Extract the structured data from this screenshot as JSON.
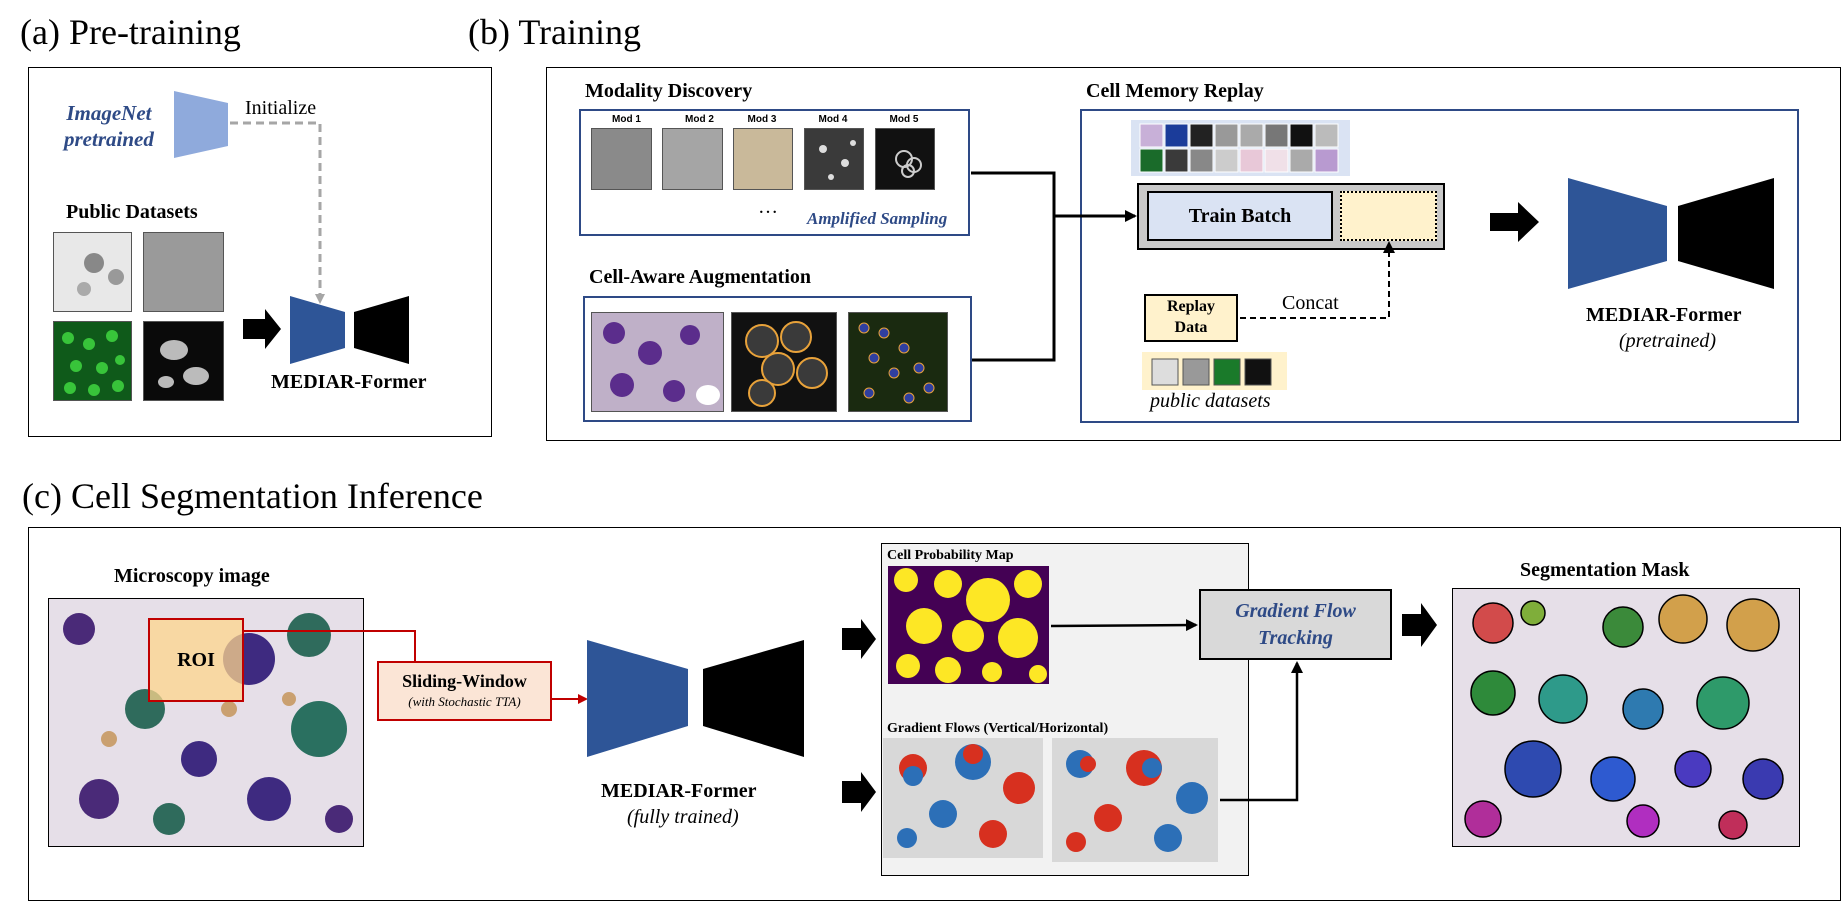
{
  "section_a": {
    "title": "(a) Pre-training",
    "imagenet_label_line1": "ImageNet",
    "imagenet_label_line2": "pretrained",
    "initialize_label": "Initialize",
    "public_datasets_label": "Public Datasets",
    "model_label": "MEDIAR-Former"
  },
  "section_b": {
    "title": "(b) Training",
    "modality_discovery": {
      "title": "Modality Discovery",
      "mods": [
        "Mod 1",
        "Mod 2",
        "Mod 3",
        "Mod 4",
        "Mod 5"
      ],
      "ellipsis": "…",
      "sampling_label": "Amplified Sampling"
    },
    "augmentation_title": "Cell-Aware Augmentation",
    "memory_replay": {
      "title": "Cell Memory Replay",
      "train_batch_label": "Train Batch",
      "replay_line1": "Replay",
      "replay_line2": "Data",
      "concat_label": "Concat",
      "public_datasets_label": "public datasets"
    },
    "model_label": "MEDIAR-Former",
    "model_sublabel": "(pretrained)"
  },
  "section_c": {
    "title": "(c) Cell Segmentation Inference",
    "microscopy_label": "Microscopy image",
    "roi_label": "ROI",
    "sliding_window_label": "Sliding-Window",
    "sliding_window_sublabel": "(with Stochastic TTA)",
    "model_label": "MEDIAR-Former",
    "model_sublabel": "(fully trained)",
    "prob_map_label": "Cell Probability Map",
    "gradient_flows_label": "Gradient Flows (Vertical/Horizontal)",
    "tracking_line1": "Gradient Flow",
    "tracking_line2": "Tracking",
    "mask_label": "Segmentation Mask"
  },
  "colors": {
    "encoder_blue": "#2e5597",
    "light_encoder_blue": "#8faadc",
    "box_blue": "#2e4a86",
    "train_batch_fill": "#dae3f3",
    "replay_fill": "#fff2cc",
    "sliding_fill": "#fbe5d6",
    "roi_red": "#c00000",
    "prob_purple": "#440154",
    "prob_yellow": "#fde725"
  }
}
